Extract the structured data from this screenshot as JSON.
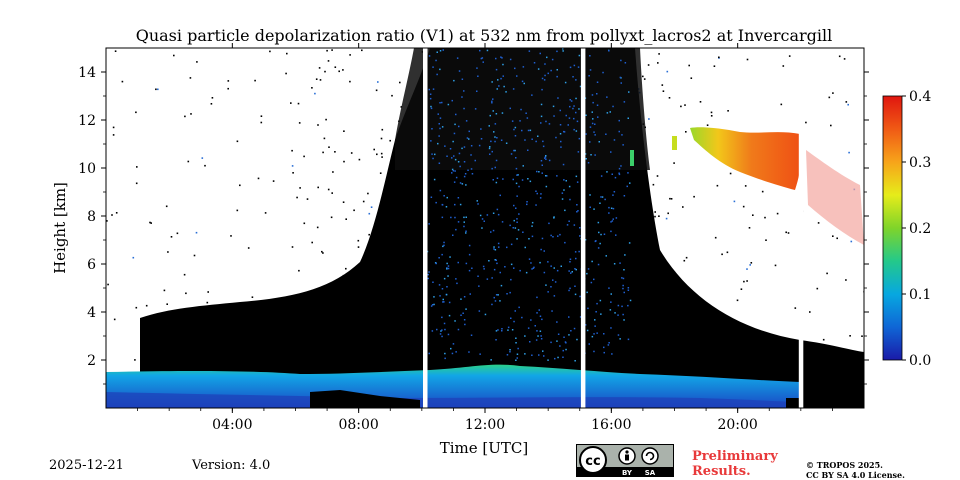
{
  "chart_data": {
    "type": "heatmap",
    "title": "Quasi particle depolarization ratio (V1) at 532 nm from pollyxt_lacros2 at Invercargill",
    "xlabel": "Time [UTC]",
    "ylabel": "Height [km]",
    "x_ticks": [
      {
        "value": 4,
        "label": "04:00"
      },
      {
        "value": 8,
        "label": "08:00"
      },
      {
        "value": 12,
        "label": "12:00"
      },
      {
        "value": 16,
        "label": "16:00"
      },
      {
        "value": 20,
        "label": "20:00"
      }
    ],
    "y_ticks": [
      {
        "value": 2,
        "label": "2"
      },
      {
        "value": 4,
        "label": "4"
      },
      {
        "value": 6,
        "label": "6"
      },
      {
        "value": 8,
        "label": "8"
      },
      {
        "value": 10,
        "label": "10"
      },
      {
        "value": 12,
        "label": "12"
      },
      {
        "value": 14,
        "label": "14"
      }
    ],
    "xlim": [
      0,
      24
    ],
    "ylim": [
      0,
      15
    ],
    "colorbar": {
      "range": [
        0.0,
        0.4
      ],
      "ticks": [
        "0.0",
        "0.1",
        "0.2",
        "0.3",
        "0.4"
      ],
      "colormap": [
        "#1a1aa8",
        "#0f66d6",
        "#07a8e0",
        "#24c98a",
        "#7fd42a",
        "#e6ec1a",
        "#f7a41a",
        "#f05a15",
        "#e0160f"
      ]
    },
    "no_data_color": "#000000",
    "data_gaps_utc": [
      10.1,
      15.1,
      22.0
    ],
    "regions": [
      {
        "name": "boundary layer aerosol",
        "time_start": 0,
        "time_end": 22,
        "height_start": 0,
        "height_end": 1.6,
        "value": 0.03
      },
      {
        "name": "dense cloud / signal-limited",
        "time_start": 8,
        "time_end": 17,
        "height_start": 1.6,
        "height_end": 15,
        "value": null
      },
      {
        "name": "cirrus",
        "time_start": 18.5,
        "time_end": 24,
        "height_start": 7.5,
        "height_end": 11.5,
        "value": 0.3
      }
    ]
  },
  "footer": {
    "date": "2025-12-21",
    "version": "Version: 4.0",
    "license_badge": {
      "cc": "cc",
      "by": "BY",
      "sa": "SA",
      "color": "#aab2ab"
    },
    "preliminary_line1": "Preliminary",
    "preliminary_line2": "Results.",
    "copyright_line1": "© TROPOS 2025.",
    "copyright_line2": "CC BY SA 4.0 License."
  }
}
